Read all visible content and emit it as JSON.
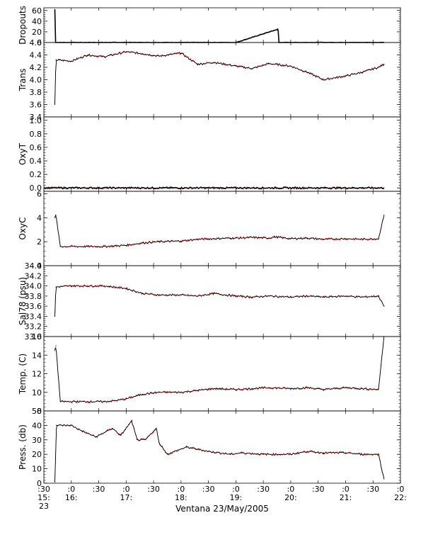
{
  "x_axis": {
    "start_hours": 15.5,
    "end_hours": 22.0,
    "tick_labels": [
      ":30",
      ":0",
      ":30",
      ":0",
      ":30",
      ":0",
      ":30",
      ":0",
      ":30",
      ":0",
      ":30",
      ":0",
      ":30",
      ":0"
    ],
    "hour_labels": [
      "15:",
      "16:",
      "17:",
      "18:",
      "19:",
      "20:",
      "21:",
      "22:"
    ],
    "day_label": "23",
    "caption": "Ventana 23/May/2005"
  },
  "colors": {
    "raw": "#ff0000",
    "smoothed": "#000000",
    "axis": "#000000"
  },
  "chart_data": [
    {
      "type": "line",
      "ylabel": "Dropouts",
      "ylim": [
        0,
        65
      ],
      "yticks": [
        0,
        20,
        40,
        60
      ],
      "ytick_labels": [
        "0",
        "20",
        "40",
        "60"
      ],
      "series": [
        {
          "values_t": [
            15.7,
            15.71,
            16.0,
            17.0,
            18.0,
            19.0,
            19.77,
            19.78,
            20.0,
            21.0,
            21.7
          ],
          "values_y": [
            62,
            0,
            0,
            0,
            0,
            0,
            25,
            0,
            0,
            0,
            0
          ]
        }
      ]
    },
    {
      "type": "line",
      "ylabel": "Trans",
      "ylim": [
        3.4,
        4.6
      ],
      "yticks": [
        3.4,
        3.6,
        3.8,
        4.0,
        4.2,
        4.4,
        4.6
      ],
      "ytick_labels": [
        "3.4",
        "3.6",
        "3.8",
        "4.0",
        "4.2",
        "4.4",
        "4.6"
      ],
      "series": [
        {
          "values_t": [
            15.7,
            15.72,
            16.0,
            16.3,
            16.6,
            17.0,
            17.3,
            17.6,
            18.0,
            18.3,
            18.6,
            19.0,
            19.3,
            19.6,
            20.0,
            20.3,
            20.6,
            21.0,
            21.3,
            21.6,
            21.7
          ],
          "values_y": [
            3.6,
            4.32,
            4.3,
            4.4,
            4.37,
            4.45,
            4.42,
            4.38,
            4.43,
            4.25,
            4.28,
            4.22,
            4.18,
            4.26,
            4.22,
            4.12,
            4.0,
            4.06,
            4.12,
            4.2,
            4.25
          ]
        }
      ]
    },
    {
      "type": "line",
      "ylabel": "OxyT",
      "ylim": [
        -0.05,
        1.05
      ],
      "yticks": [
        0.0,
        0.2,
        0.4,
        0.6,
        0.8,
        1.0
      ],
      "ytick_labels": [
        "0.0",
        "0.2",
        "0.4",
        "0.6",
        "0.8",
        "1.0"
      ],
      "series": [
        {
          "values_t": [
            15.5,
            21.7
          ],
          "values_y": [
            0.0,
            0.0
          ]
        }
      ]
    },
    {
      "type": "line",
      "ylabel": "OxyC",
      "ylim": [
        0,
        6.2
      ],
      "yticks": [
        0,
        2,
        4,
        6
      ],
      "ytick_labels": [
        "0",
        "2",
        "4",
        "6"
      ],
      "series": [
        {
          "values_t": [
            15.7,
            15.72,
            15.8,
            16.3,
            16.6,
            16.8,
            17.0,
            17.3,
            17.6,
            18.0,
            18.3,
            18.6,
            18.9,
            19.0,
            19.3,
            19.6,
            19.7,
            20.0,
            20.3,
            20.6,
            21.0,
            21.3,
            21.6,
            21.7
          ],
          "values_y": [
            4.0,
            4.2,
            1.6,
            1.6,
            1.6,
            1.65,
            1.7,
            1.9,
            2.0,
            2.05,
            2.2,
            2.25,
            2.3,
            2.3,
            2.35,
            2.3,
            2.4,
            2.25,
            2.3,
            2.2,
            2.25,
            2.2,
            2.25,
            4.2
          ]
        }
      ]
    },
    {
      "type": "line",
      "ylabel": "Sal78 (psu)",
      "ylim": [
        33.0,
        34.4
      ],
      "yticks": [
        33.0,
        33.2,
        33.4,
        33.6,
        33.8,
        34.0,
        34.2,
        34.4
      ],
      "ytick_labels": [
        "33.0",
        "33.2",
        "33.4",
        "33.6",
        "33.8",
        "34.0",
        "34.2",
        "34.4"
      ],
      "series": [
        {
          "values_t": [
            15.7,
            15.72,
            16.0,
            16.3,
            16.6,
            17.0,
            17.3,
            17.6,
            18.0,
            18.3,
            18.6,
            19.0,
            19.3,
            19.6,
            20.0,
            20.3,
            20.6,
            21.0,
            21.3,
            21.6,
            21.7
          ],
          "values_y": [
            33.4,
            33.98,
            34.0,
            34.0,
            34.0,
            33.95,
            33.85,
            33.82,
            33.82,
            33.8,
            33.85,
            33.8,
            33.78,
            33.8,
            33.78,
            33.8,
            33.78,
            33.8,
            33.78,
            33.8,
            33.6
          ]
        }
      ]
    },
    {
      "type": "line",
      "ylabel": "Temp. (C)",
      "ylim": [
        8,
        16
      ],
      "yticks": [
        8,
        10,
        12,
        14,
        16
      ],
      "ytick_labels": [
        "8",
        "10",
        "12",
        "14",
        "16"
      ],
      "series": [
        {
          "values_t": [
            15.7,
            15.72,
            15.8,
            16.3,
            16.6,
            16.8,
            17.0,
            17.3,
            17.6,
            18.0,
            18.3,
            18.6,
            19.0,
            19.3,
            19.6,
            20.0,
            20.3,
            20.6,
            21.0,
            21.3,
            21.6,
            21.7
          ],
          "values_y": [
            14.5,
            15.0,
            9.0,
            9.0,
            9.0,
            9.1,
            9.3,
            9.8,
            10.0,
            10.0,
            10.2,
            10.4,
            10.3,
            10.4,
            10.5,
            10.4,
            10.5,
            10.3,
            10.5,
            10.4,
            10.3,
            16.0
          ]
        }
      ]
    },
    {
      "type": "line",
      "ylabel": "Press. (db)",
      "ylim": [
        0,
        50
      ],
      "yticks": [
        0,
        10,
        20,
        30,
        40,
        50
      ],
      "ytick_labels": [
        "0",
        "10",
        "20",
        "30",
        "40",
        "50"
      ],
      "series": [
        {
          "values_t": [
            15.7,
            15.73,
            16.0,
            16.2,
            16.45,
            16.55,
            16.65,
            16.75,
            16.9,
            17.1,
            17.2,
            17.35,
            17.55,
            17.6,
            17.75,
            18.1,
            18.5,
            18.9,
            19.1,
            19.5,
            19.8,
            20.0,
            20.3,
            20.6,
            21.0,
            21.3,
            21.6,
            21.7
          ],
          "values_y": [
            1,
            40,
            40,
            36,
            32,
            34,
            36,
            38,
            33,
            43,
            30,
            30,
            38,
            28,
            20,
            25,
            22,
            20,
            21,
            20,
            20,
            20,
            22,
            21,
            21,
            20,
            20,
            3
          ]
        }
      ]
    }
  ]
}
